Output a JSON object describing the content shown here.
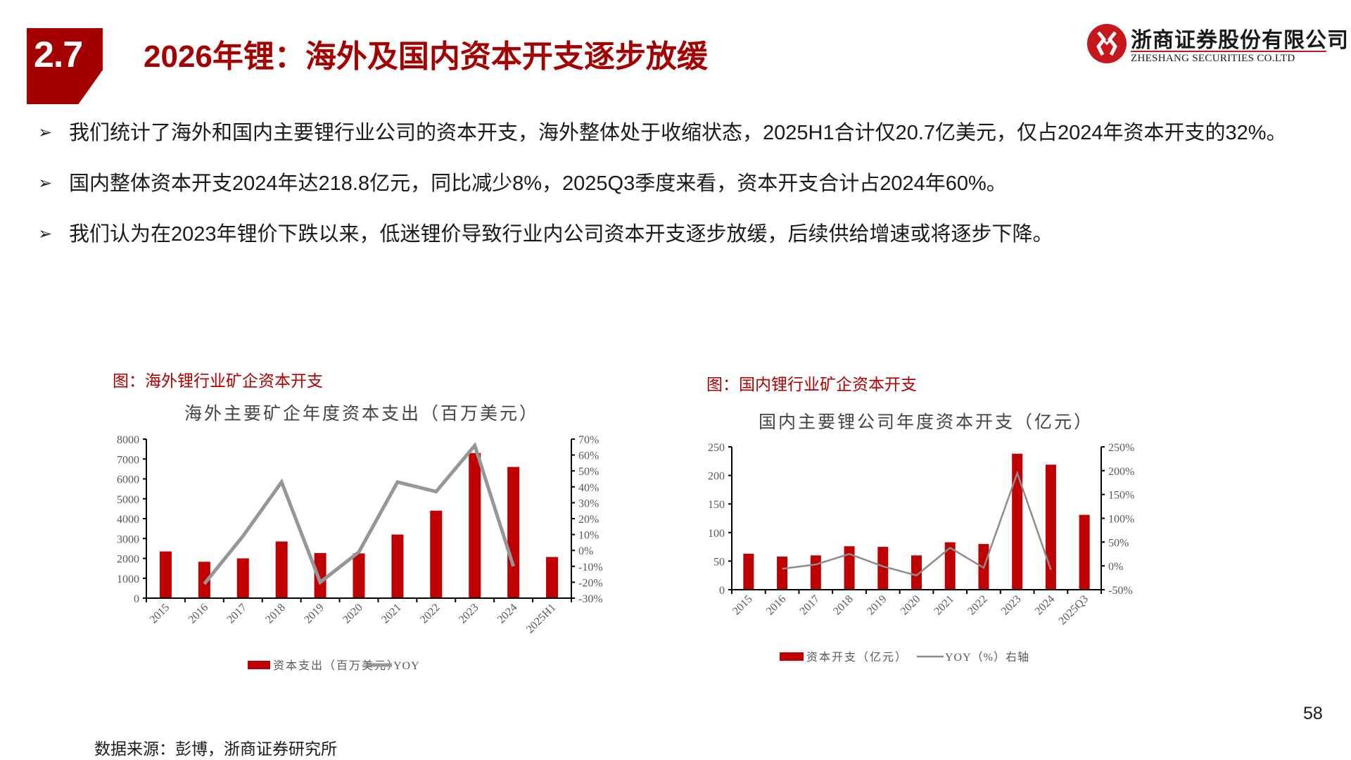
{
  "header": {
    "section_number": "2.7",
    "title": "2026年锂：海外及国内资本开支逐步放缓",
    "logo": {
      "name_cn": "浙商证券股份有限公司",
      "name_en": "ZHESHANG SECURITIES CO.LTD",
      "brand_color": "#c8161d"
    }
  },
  "bullets": [
    {
      "marker": "arrow-bullet",
      "text": " 我们统计了海外和国内主要锂行业公司的资本开支，海外整体处于收缩状态，2025H1合计仅20.7亿美元，仅占2024年资本开支的32%。"
    },
    {
      "marker": "arrow-bullet",
      "text": "国内整体资本开支2024年达218.8亿元，同比减少8%，2025Q3季度来看，资本开支合计占2024年60%。"
    },
    {
      "marker": "arrow-bullet",
      "text": "我们认为在2023年锂价下跌以来，低迷锂价导致行业内公司资本开支逐步放缓，后续供给增速或将逐步下降。"
    }
  ],
  "figures": [
    {
      "caption": "图：海外锂行业矿企资本开支"
    },
    {
      "caption": "图：国内锂行业矿企资本开支"
    }
  ],
  "chart_data": [
    {
      "type": "bar",
      "title": "海外主要矿企年度资本支出（百万美元）",
      "categories": [
        "2015",
        "2016",
        "2017",
        "2018",
        "2019",
        "2020",
        "2021",
        "2022",
        "2023",
        "2024",
        "2025H1"
      ],
      "series": [
        {
          "name": "资本支出（百万美元）",
          "type": "bar",
          "axis": "left",
          "color": "#c00000",
          "values": [
            2350,
            1830,
            2000,
            2850,
            2270,
            2250,
            3200,
            4400,
            7300,
            6600,
            2070
          ]
        },
        {
          "name": "YOY",
          "type": "line",
          "axis": "right",
          "color": "#969696",
          "values": [
            null,
            -21,
            9,
            43,
            -20,
            -1,
            43,
            37,
            66,
            -10,
            null
          ]
        }
      ],
      "left_axis": {
        "min": 0,
        "max": 8000,
        "ticks": [
          "0",
          "1000",
          "2000",
          "3000",
          "4000",
          "5000",
          "6000",
          "7000",
          "8000"
        ]
      },
      "right_axis": {
        "min": -30,
        "max": 70,
        "ticks": [
          "-30%",
          "-20%",
          "-10%",
          "0%",
          "10%",
          "20%",
          "30%",
          "40%",
          "50%",
          "60%",
          "70%"
        ]
      },
      "legend": [
        "资本支出（百万美元）",
        "YOY"
      ],
      "legend_position": "bottom",
      "grid": false,
      "xlabel": "",
      "ylabel": ""
    },
    {
      "type": "bar",
      "title": "国内主要锂公司年度资本开支（亿元）",
      "categories": [
        "2015",
        "2016",
        "2017",
        "2018",
        "2019",
        "2020",
        "2021",
        "2022",
        "2023",
        "2024",
        "2025Q3"
      ],
      "series": [
        {
          "name": "资本开支（亿元）",
          "type": "bar",
          "axis": "left",
          "color": "#c00000",
          "values": [
            63,
            58,
            60,
            76,
            75,
            60,
            83,
            80,
            238,
            218.8,
            131
          ]
        },
        {
          "name": "YOY（%）右轴",
          "type": "line",
          "axis": "right",
          "color": "#8c8c8c",
          "values": [
            null,
            -6,
            3,
            25,
            -1,
            -20,
            38,
            -4,
            195,
            -8,
            null
          ]
        }
      ],
      "left_axis": {
        "min": 0,
        "max": 250,
        "ticks": [
          "0",
          "50",
          "100",
          "150",
          "200",
          "250"
        ]
      },
      "right_axis": {
        "min": -50,
        "max": 250,
        "ticks": [
          "-50%",
          "0%",
          "50%",
          "100%",
          "150%",
          "200%",
          "250%"
        ]
      },
      "legend": [
        "资本开支（亿元）",
        "YOY（%）右轴"
      ],
      "legend_position": "bottom",
      "grid": false,
      "xlabel": "",
      "ylabel": ""
    }
  ],
  "footer": {
    "source": "数据来源：彭博，浙商证券研究所",
    "page_number": "58"
  }
}
